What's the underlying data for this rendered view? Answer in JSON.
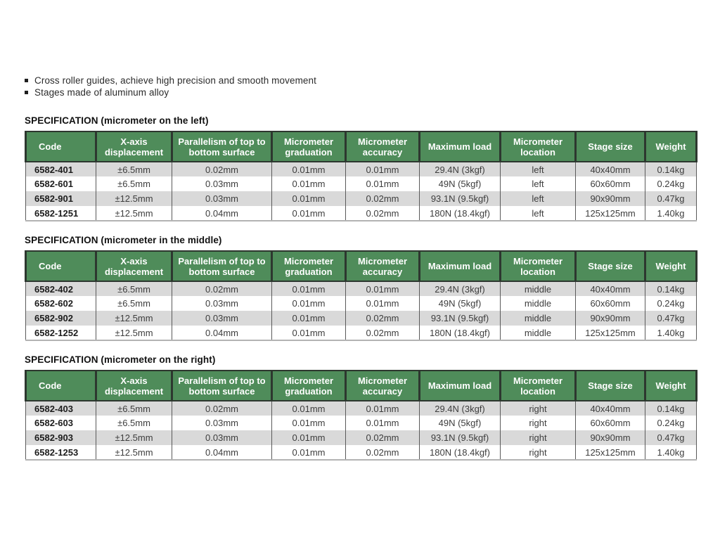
{
  "bullets": [
    "Cross roller guides, achieve high precision and smooth movement",
    "Stages made of aluminum alloy"
  ],
  "columns": [
    "Code",
    "X-axis displacement",
    "Parallelism of top to bottom surface",
    "Micrometer graduation",
    "Micrometer accuracy",
    "Maximum load",
    "Micrometer location",
    "Stage size",
    "Weight"
  ],
  "tables": [
    {
      "title": "SPECIFICATION (micrometer on the left)",
      "rows": [
        [
          "6582-401",
          "±6.5mm",
          "0.02mm",
          "0.01mm",
          "0.01mm",
          "29.4N (3kgf)",
          "left",
          "40x40mm",
          "0.14kg"
        ],
        [
          "6582-601",
          "±6.5mm",
          "0.03mm",
          "0.01mm",
          "0.01mm",
          "49N (5kgf)",
          "left",
          "60x60mm",
          "0.24kg"
        ],
        [
          "6582-901",
          "±12.5mm",
          "0.03mm",
          "0.01mm",
          "0.02mm",
          "93.1N (9.5kgf)",
          "left",
          "90x90mm",
          "0.47kg"
        ],
        [
          "6582-1251",
          "±12.5mm",
          "0.04mm",
          "0.01mm",
          "0.02mm",
          "180N (18.4kgf)",
          "left",
          "125x125mm",
          "1.40kg"
        ]
      ]
    },
    {
      "title": "SPECIFICATION (micrometer in the middle)",
      "rows": [
        [
          "6582-402",
          "±6.5mm",
          "0.02mm",
          "0.01mm",
          "0.01mm",
          "29.4N (3kgf)",
          "middle",
          "40x40mm",
          "0.14kg"
        ],
        [
          "6582-602",
          "±6.5mm",
          "0.03mm",
          "0.01mm",
          "0.01mm",
          "49N (5kgf)",
          "middle",
          "60x60mm",
          "0.24kg"
        ],
        [
          "6582-902",
          "±12.5mm",
          "0.03mm",
          "0.01mm",
          "0.02mm",
          "93.1N (9.5kgf)",
          "middle",
          "90x90mm",
          "0.47kg"
        ],
        [
          "6582-1252",
          "±12.5mm",
          "0.04mm",
          "0.01mm",
          "0.02mm",
          "180N (18.4kgf)",
          "middle",
          "125x125mm",
          "1.40kg"
        ]
      ]
    },
    {
      "title": "SPECIFICATION (micrometer on the right)",
      "rows": [
        [
          "6582-403",
          "±6.5mm",
          "0.02mm",
          "0.01mm",
          "0.01mm",
          "29.4N (3kgf)",
          "right",
          "40x40mm",
          "0.14kg"
        ],
        [
          "6582-603",
          "±6.5mm",
          "0.03mm",
          "0.01mm",
          "0.01mm",
          "49N (5kgf)",
          "right",
          "60x60mm",
          "0.24kg"
        ],
        [
          "6582-903",
          "±12.5mm",
          "0.03mm",
          "0.01mm",
          "0.02mm",
          "93.1N (9.5kgf)",
          "right",
          "90x90mm",
          "0.47kg"
        ],
        [
          "6582-1253",
          "±12.5mm",
          "0.04mm",
          "0.01mm",
          "0.02mm",
          "180N (18.4kgf)",
          "right",
          "125x125mm",
          "1.40kg"
        ]
      ]
    }
  ],
  "colors": {
    "header_green": "#4f8c5a",
    "header_border_dark": "#2d372f",
    "row_stripe_gray": "#d9d9d9",
    "body_text": "#3d3d3d",
    "page_background": "#ffffff"
  }
}
